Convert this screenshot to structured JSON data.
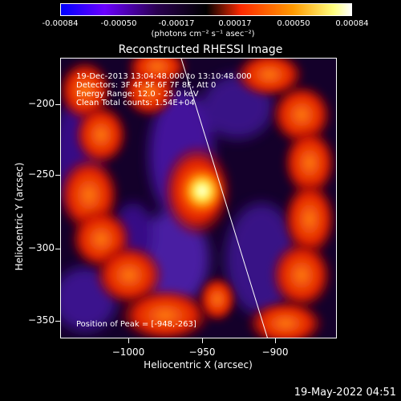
{
  "colorbar": {
    "ticks": [
      "-0.00084",
      "-0.00050",
      "-0.00017",
      "0.00017",
      "0.00050",
      "0.00084"
    ],
    "units": "(photons cm⁻² s⁻¹ asec⁻²)",
    "colors": [
      "#0000ff",
      "#6a00ff",
      "#000000",
      "#ff2a00",
      "#ff9a00",
      "#ffffff"
    ]
  },
  "title": "Reconstructed RHESSI Image",
  "info": {
    "line1": "19-Dec-2013 13:04:48.000 to 13:10:48.000",
    "line2": "Detectors: 3F 4F 5F 6F 7F 8F, Att 0",
    "line3": "Energy Range: 12.0 - 25.0 keV",
    "line4": "Clean     Total counts: 1.54E+04",
    "peak": "Position of Peak = [-948,-263]"
  },
  "axes": {
    "xlabel": "Heliocentric X (arcsec)",
    "ylabel": "Heliocentric Y (arcsec)",
    "xticks": [
      "−1000",
      "−950",
      "−900"
    ],
    "yticks": [
      "−200",
      "−250",
      "−300",
      "−350"
    ]
  },
  "timestamp": "19-May-2022 04:51"
}
